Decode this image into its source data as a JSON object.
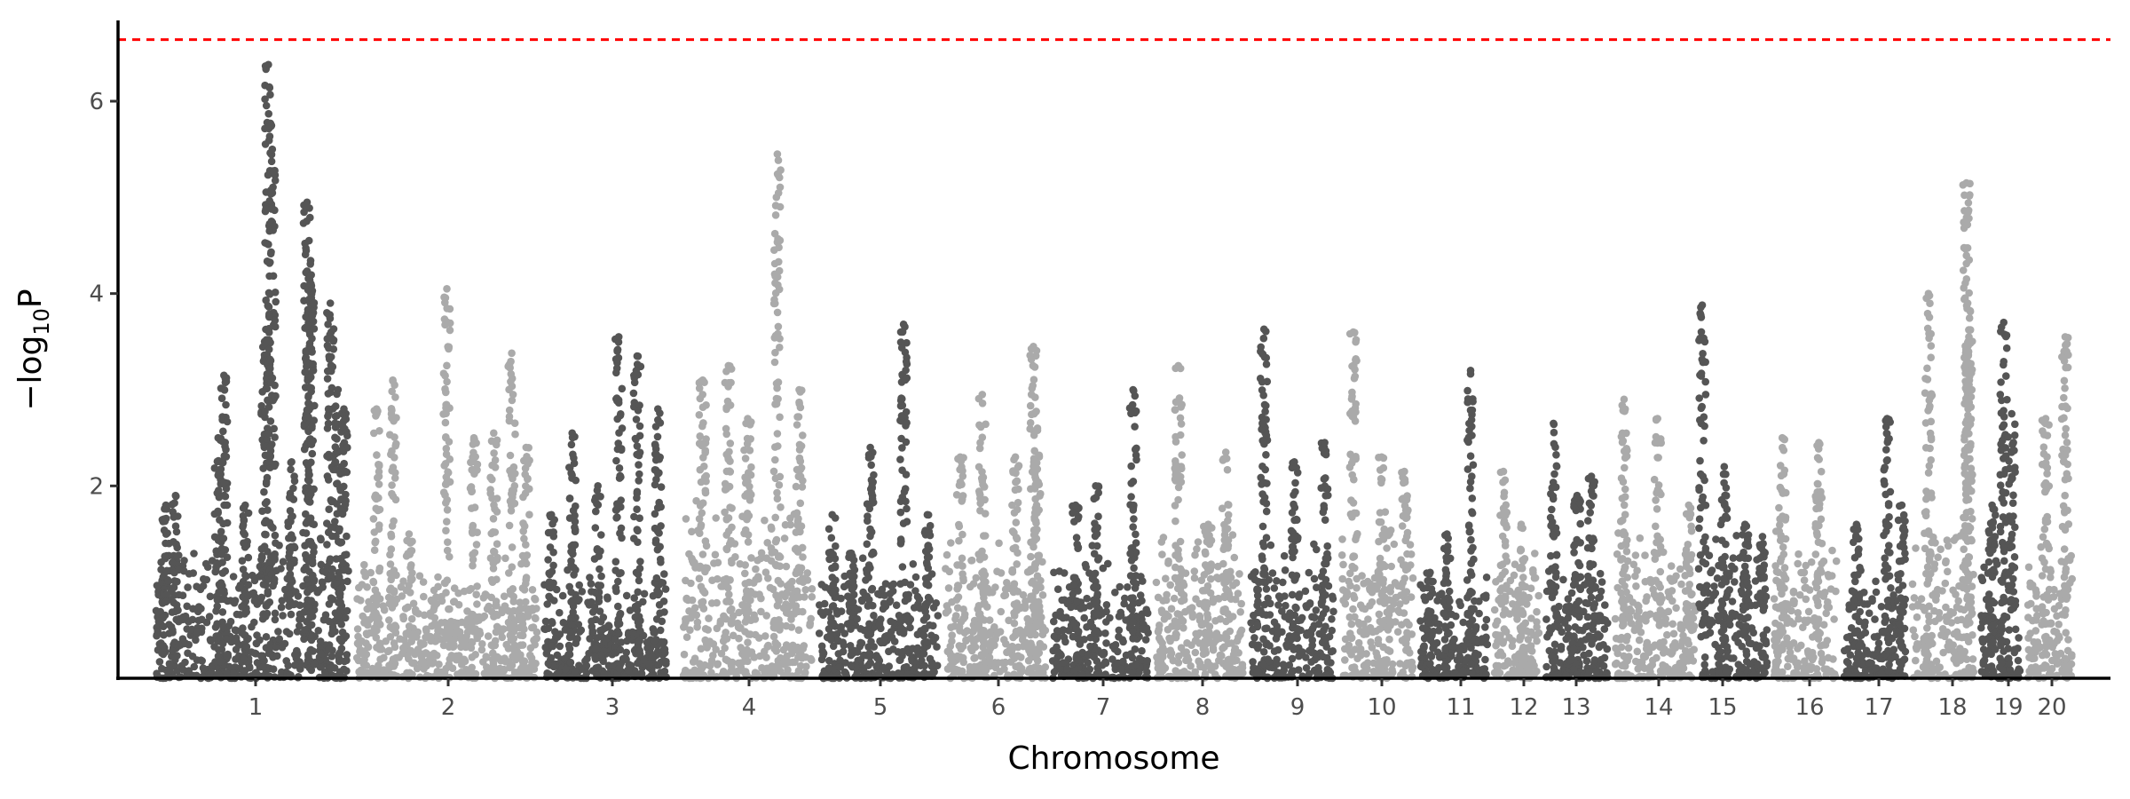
{
  "chart_data": {
    "type": "scatter",
    "subtype": "manhattan",
    "title": "",
    "xlabel": "Chromosome",
    "ylabel": {
      "prefix": "−log",
      "subscript": "10",
      "suffix": "P"
    },
    "ylim": [
      0,
      6.84
    ],
    "yticks": [
      2,
      4,
      6
    ],
    "grid": false,
    "legend": "none",
    "threshold": {
      "value": 6.64,
      "color": "#FF0000",
      "style": "dashed"
    },
    "colors": {
      "odd_chromosomes": "#555555",
      "even_chromosomes": "#AAAAAA",
      "axis": "#000000",
      "tick_text": "#4D4D4D"
    },
    "chromosomes": [
      {
        "label": "1",
        "baseline": 1.3,
        "peaks": [
          [
            0.03,
            1.0
          ],
          [
            0.05,
            1.8
          ],
          [
            0.1,
            1.9
          ],
          [
            0.32,
            2.5
          ],
          [
            0.35,
            3.15
          ],
          [
            0.46,
            1.8
          ],
          [
            0.56,
            3.5
          ],
          [
            0.58,
            6.38
          ],
          [
            0.6,
            5.5
          ],
          [
            0.7,
            2.25
          ],
          [
            0.78,
            4.95
          ],
          [
            0.79,
            4.55
          ],
          [
            0.8,
            4.1
          ],
          [
            0.9,
            3.9
          ],
          [
            0.94,
            3.0
          ],
          [
            0.97,
            2.8
          ]
        ]
      },
      {
        "label": "2",
        "baseline": 1.0,
        "peaks": [
          [
            0.11,
            2.8
          ],
          [
            0.2,
            3.1
          ],
          [
            0.29,
            1.5
          ],
          [
            0.5,
            4.05
          ],
          [
            0.65,
            2.5
          ],
          [
            0.76,
            2.55
          ],
          [
            0.86,
            3.38
          ],
          [
            0.94,
            2.4
          ]
        ]
      },
      {
        "label": "3",
        "baseline": 0.9,
        "peaks": [
          [
            0.06,
            1.7
          ],
          [
            0.23,
            2.55
          ],
          [
            0.44,
            2.0
          ],
          [
            0.61,
            3.55
          ],
          [
            0.76,
            3.35
          ],
          [
            0.93,
            2.8
          ]
        ]
      },
      {
        "label": "4",
        "baseline": 1.5,
        "peaks": [
          [
            0.15,
            3.1
          ],
          [
            0.35,
            3.25
          ],
          [
            0.5,
            2.7
          ],
          [
            0.73,
            5.45
          ],
          [
            0.9,
            3.0
          ]
        ]
      },
      {
        "label": "5",
        "baseline": 1.0,
        "peaks": [
          [
            0.11,
            1.7
          ],
          [
            0.27,
            1.3
          ],
          [
            0.43,
            2.4
          ],
          [
            0.71,
            3.68
          ],
          [
            0.91,
            1.7
          ]
        ]
      },
      {
        "label": "6",
        "baseline": 1.2,
        "peaks": [
          [
            0.15,
            2.3
          ],
          [
            0.37,
            2.95
          ],
          [
            0.7,
            2.3
          ],
          [
            0.88,
            3.45
          ],
          [
            0.92,
            2.6
          ]
        ]
      },
      {
        "label": "7",
        "baseline": 1.0,
        "peaks": [
          [
            0.24,
            1.8
          ],
          [
            0.45,
            2.0
          ],
          [
            0.84,
            3.0
          ]
        ]
      },
      {
        "label": "8",
        "baseline": 1.3,
        "peaks": [
          [
            0.26,
            3.25
          ],
          [
            0.6,
            1.6
          ],
          [
            0.8,
            2.35
          ]
        ]
      },
      {
        "label": "9",
        "baseline": 1.2,
        "peaks": [
          [
            0.16,
            3.63
          ],
          [
            0.52,
            2.25
          ],
          [
            0.88,
            2.45
          ]
        ]
      },
      {
        "label": "10",
        "baseline": 1.3,
        "peaks": [
          [
            0.16,
            3.6
          ],
          [
            0.56,
            2.3
          ],
          [
            0.88,
            2.15
          ]
        ]
      },
      {
        "label": "11",
        "baseline": 0.9,
        "peaks": [
          [
            0.15,
            1.1
          ],
          [
            0.4,
            1.5
          ],
          [
            0.75,
            3.2
          ]
        ]
      },
      {
        "label": "12",
        "baseline": 1.2,
        "peaks": [
          [
            0.2,
            2.15
          ],
          [
            0.6,
            1.6
          ],
          [
            0.82,
            0.2
          ]
        ]
      },
      {
        "label": "13",
        "baseline": 1.0,
        "peaks": [
          [
            0.12,
            2.65
          ],
          [
            0.5,
            1.9
          ],
          [
            0.73,
            2.1
          ]
        ]
      },
      {
        "label": "14",
        "baseline": 1.2,
        "peaks": [
          [
            0.11,
            2.9
          ],
          [
            0.53,
            2.7
          ],
          [
            0.92,
            1.8
          ]
        ]
      },
      {
        "label": "15",
        "baseline": 1.3,
        "peaks": [
          [
            0.0,
            3.88
          ],
          [
            0.34,
            2.2
          ],
          [
            0.66,
            1.6
          ],
          [
            0.94,
            1.4
          ]
        ]
      },
      {
        "label": "16",
        "baseline": 1.2,
        "peaks": [
          [
            0.13,
            2.5
          ],
          [
            0.71,
            2.45
          ]
        ]
      },
      {
        "label": "17",
        "baseline": 0.9,
        "peaks": [
          [
            0.2,
            1.6
          ],
          [
            0.7,
            2.7
          ],
          [
            0.94,
            1.8
          ]
        ]
      },
      {
        "label": "18",
        "baseline": 1.4,
        "peaks": [
          [
            0.26,
            4.0
          ],
          [
            0.88,
            5.15
          ],
          [
            0.9,
            3.9
          ],
          [
            0.92,
            3.55
          ]
        ]
      },
      {
        "label": "19",
        "baseline": 1.2,
        "peaks": [
          [
            0.28,
            1.8
          ],
          [
            0.57,
            3.7
          ],
          [
            0.77,
            2.75
          ]
        ]
      },
      {
        "label": "20",
        "baseline": 1.3,
        "peaks": [
          [
            0.4,
            2.7
          ],
          [
            0.84,
            3.55
          ]
        ]
      }
    ]
  }
}
